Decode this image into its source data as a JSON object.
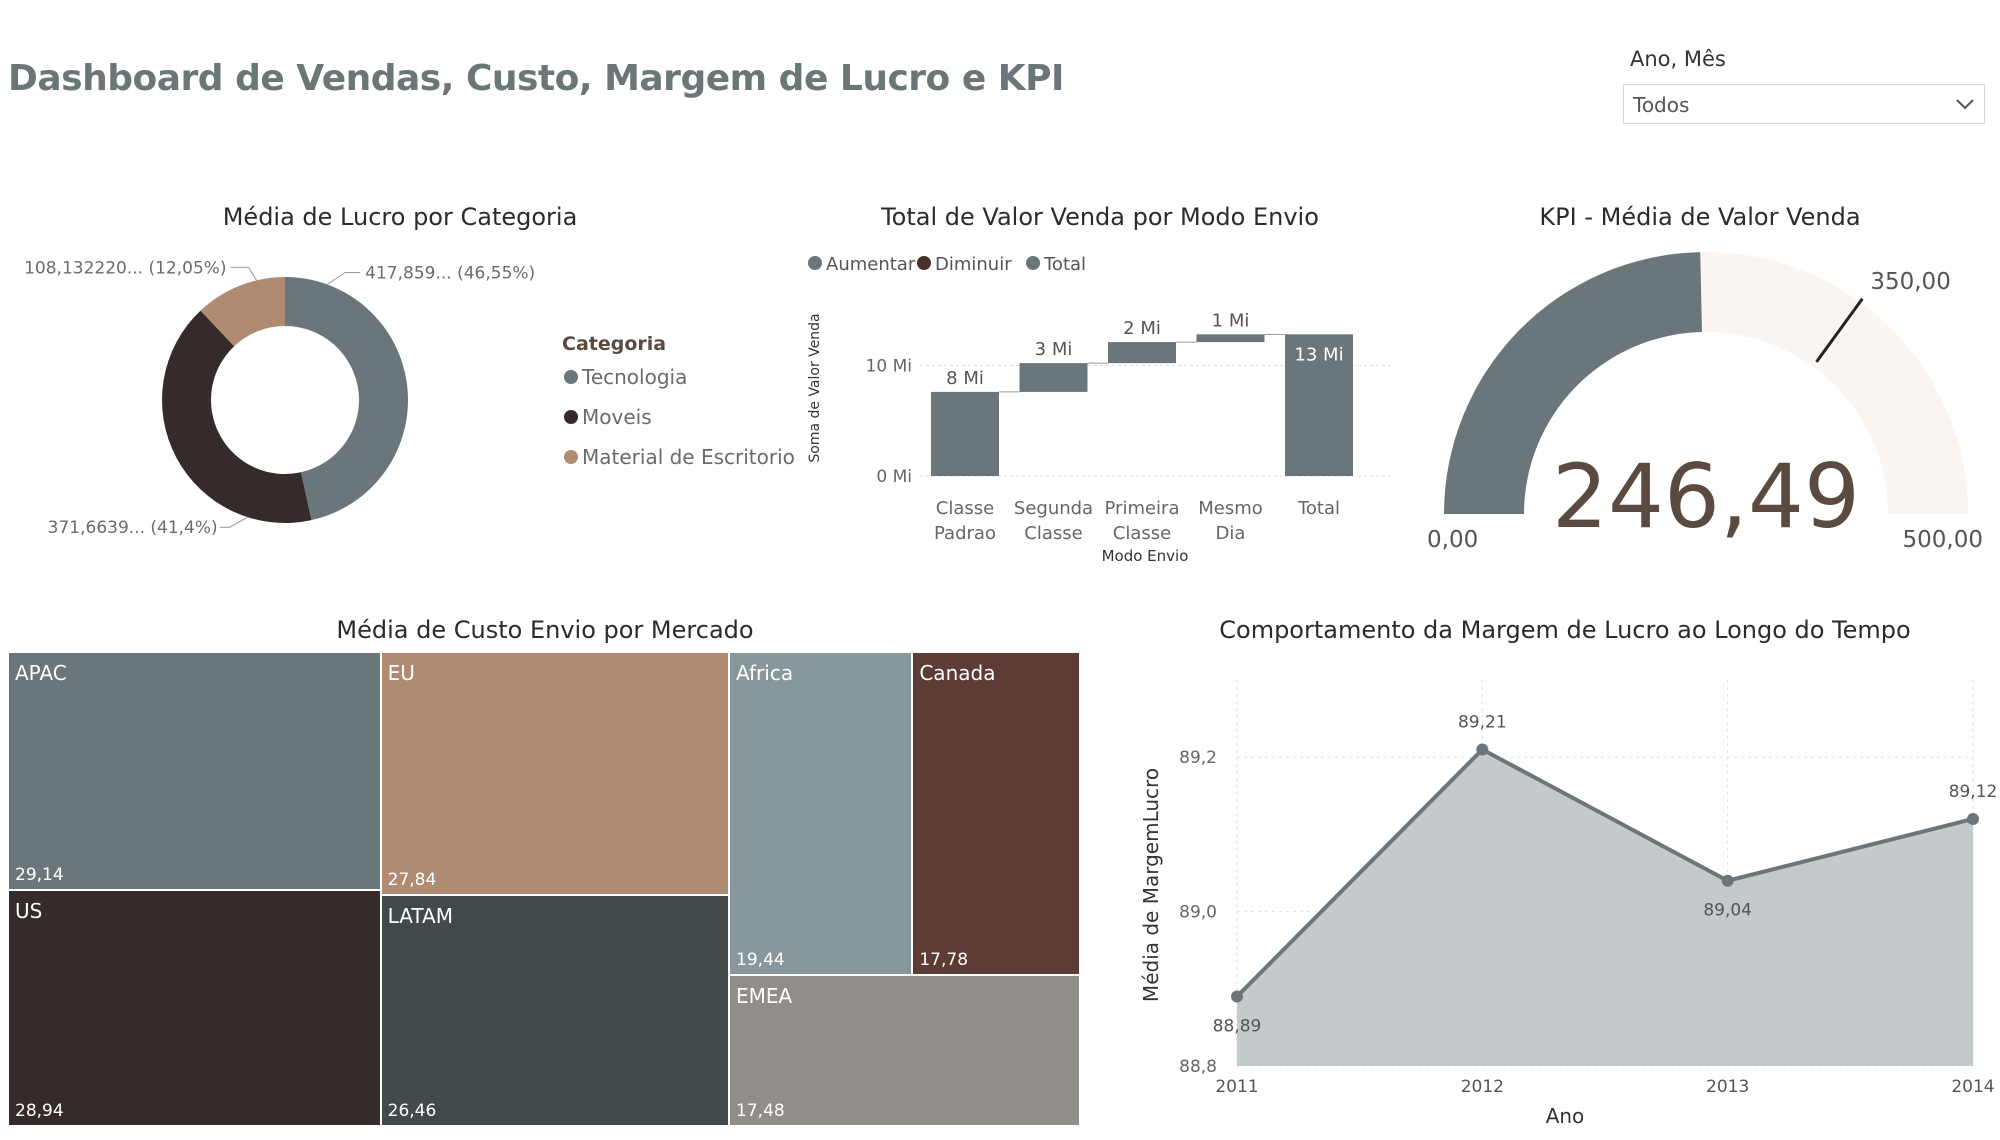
{
  "page": {
    "title": "Dashboard de Vendas, Custo, Margem de Lucro e KPI"
  },
  "slicer": {
    "label": "Ano, Mês",
    "value": "Todos",
    "icon": "chevron-down-icon"
  },
  "colors": {
    "slate": "#6a7679",
    "dark_brown": "#352b2a",
    "tan": "#b08b72",
    "kpi_track": "#faf5f0",
    "area_fill": "#c4c9cb",
    "line": "#6a7679"
  },
  "donut": {
    "title": "Média de Lucro por Categoria",
    "legend_title": "Categoria",
    "chart_data": {
      "type": "pie",
      "title": "Média de Lucro por Categoria",
      "slices": [
        {
          "name": "Tecnologia",
          "value": 417859,
          "percent": 46.55,
          "label": "417,859... (46,55%)",
          "color": "#6a7679"
        },
        {
          "name": "Moveis",
          "value": 371663.9,
          "percent": 41.4,
          "label": "371,6639... (41,4%)",
          "color": "#352b2a"
        },
        {
          "name": "Material de Escritorio",
          "value": 108132.22,
          "percent": 12.05,
          "label": "108,132220... (12,05%)",
          "color": "#b08b72"
        }
      ]
    }
  },
  "waterfall": {
    "title": "Total de Valor Venda por Modo Envio",
    "legend": [
      {
        "label": "Aumentar",
        "color": "#6a7679"
      },
      {
        "label": "Diminuir",
        "color": "#4a2f2a"
      },
      {
        "label": "Total",
        "color": "#6a7679"
      }
    ],
    "chart_data": {
      "type": "bar",
      "title": "Total de Valor Venda por Modo Envio",
      "xlabel": "Modo Envio",
      "ylabel": "Soma de Valor Venda",
      "y_ticks": [
        "0 Mi",
        "10 Mi"
      ],
      "ylim": [
        0,
        15
      ],
      "categories": [
        [
          "Classe",
          "Padrao"
        ],
        [
          "Segunda",
          "Classe"
        ],
        [
          "Primeira",
          "Classe"
        ],
        [
          "Mesmo",
          "Dia"
        ],
        [
          "Total"
        ]
      ],
      "bars": [
        {
          "start": 0,
          "end": 7.6,
          "label": "8 Mi",
          "kind": "increase"
        },
        {
          "start": 7.6,
          "end": 10.2,
          "label": "3 Mi",
          "kind": "increase"
        },
        {
          "start": 10.2,
          "end": 12.1,
          "label": "2 Mi",
          "kind": "increase"
        },
        {
          "start": 12.1,
          "end": 12.8,
          "label": "1 Mi",
          "kind": "increase"
        },
        {
          "start": 0,
          "end": 12.8,
          "label": "13 Mi",
          "kind": "total"
        }
      ]
    }
  },
  "kpi": {
    "title": "KPI - Média de Valor Venda",
    "value_text": "246,49",
    "min_text": "0,00",
    "max_text": "500,00",
    "target_text": "350,00",
    "chart_data": {
      "type": "gauge",
      "value": 246.49,
      "min": 0,
      "max": 500,
      "target": 350
    }
  },
  "treemap": {
    "title": "Média de Custo Envio por Mercado",
    "chart_data": {
      "type": "treemap",
      "items": [
        {
          "name": "APAC",
          "value": 29.14,
          "label": "29,14",
          "color": "#6a7679"
        },
        {
          "name": "US",
          "value": 28.94,
          "label": "28,94",
          "color": "#352b2a"
        },
        {
          "name": "EU",
          "value": 27.84,
          "label": "27,84",
          "color": "#b08b72"
        },
        {
          "name": "LATAM",
          "value": 26.46,
          "label": "26,46",
          "color": "#41494b"
        },
        {
          "name": "Africa",
          "value": 19.44,
          "label": "19,44",
          "color": "#87979b"
        },
        {
          "name": "Canada",
          "value": 17.78,
          "label": "17,78",
          "color": "#5c3c35"
        },
        {
          "name": "EMEA",
          "value": 17.48,
          "label": "17,48",
          "color": "#918d88"
        }
      ]
    }
  },
  "areachart": {
    "title": "Comportamento da Margem de Lucro ao Longo do Tempo",
    "chart_data": {
      "type": "area",
      "title": "Comportamento da Margem de Lucro ao Longo do Tempo",
      "xlabel": "Ano",
      "ylabel": "Média de MargemLucro",
      "x": [
        "2011",
        "2012",
        "2013",
        "2014"
      ],
      "values": [
        88.89,
        89.21,
        89.04,
        89.12
      ],
      "value_labels": [
        "88,89",
        "89,21",
        "89,04",
        "89,12"
      ],
      "ylim": [
        88.8,
        89.3
      ],
      "y_ticks": [
        88.8,
        89.0,
        89.2
      ],
      "y_tick_labels": [
        "88,8",
        "89,0",
        "89,2"
      ],
      "grid": true
    }
  }
}
